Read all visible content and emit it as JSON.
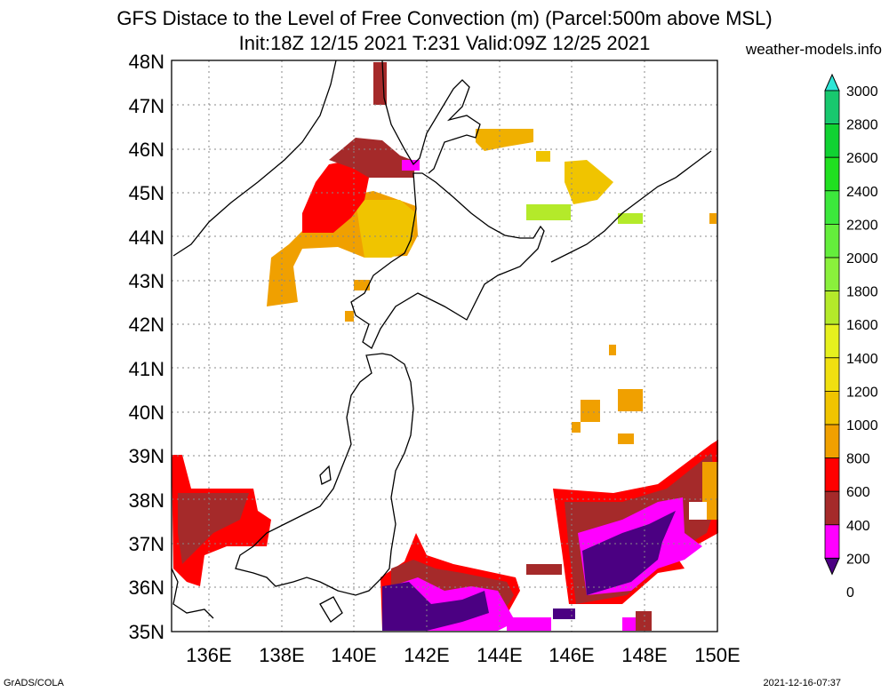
{
  "title_line1": "GFS Distace to the Level of Free Convection (m) (Parcel:500m above MSL)",
  "title_line2": "Init:18Z 12/15 2021 T:231 Valid:09Z 12/25 2021",
  "site": "weather-models.info",
  "footer_left": "GrADS/COLA",
  "footer_right": "2021-12-16-07:37",
  "lat_labels": [
    "48N",
    "47N",
    "46N",
    "45N",
    "44N",
    "43N",
    "42N",
    "41N",
    "40N",
    "39N",
    "38N",
    "37N",
    "36N",
    "35N"
  ],
  "lon_labels": [
    "136E",
    "138E",
    "140E",
    "142E",
    "144E",
    "146E",
    "148E",
    "150E"
  ],
  "colorbar": {
    "labels": [
      "3000",
      "2800",
      "2600",
      "2400",
      "2200",
      "2000",
      "1800",
      "1600",
      "1400",
      "1200",
      "1000",
      "800",
      "600",
      "400",
      "200",
      "0"
    ],
    "colors": [
      "#2ee6d6",
      "#18c86e",
      "#10d232",
      "#20e020",
      "#3ce83c",
      "#64ee3c",
      "#8af03c",
      "#b4ea2a",
      "#e6f01e",
      "#f0e010",
      "#f0c400",
      "#f0a000",
      "#ff0000",
      "#a52a2a",
      "#ff00ff",
      "#4b0082"
    ]
  }
}
